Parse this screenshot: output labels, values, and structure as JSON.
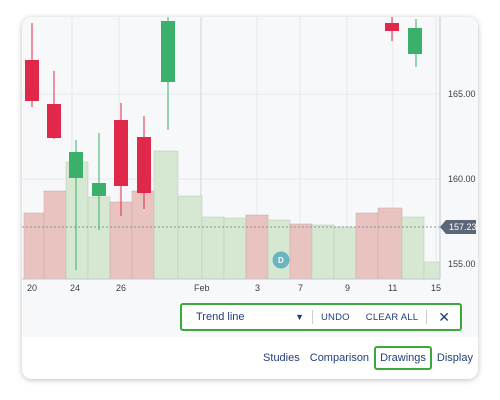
{
  "chart": {
    "y_ticks": [
      "165.00",
      "160.00",
      "155.00"
    ],
    "x_ticks": [
      "20",
      "24",
      "26",
      "Feb",
      "3",
      "7",
      "9",
      "11",
      "15"
    ],
    "current_price": "157.23",
    "event_badge": "D",
    "colors": {
      "up": "#3ab06a",
      "down": "#e0284a",
      "vol_up": "#d6e8d2",
      "vol_down": "#e9c3bf",
      "grid": "#e6e8ec",
      "price_tag": "#5b6778",
      "badge": "#6cb4c2"
    }
  },
  "drawing_toolbar": {
    "tool_value": "Trend line",
    "undo_label": "UNDO",
    "clear_all_label": "CLEAR ALL",
    "close_icon": "close-icon"
  },
  "bottom_menu": {
    "studies": "Studies",
    "comparison": "Comparison",
    "drawings": "Drawings",
    "display": "Display"
  }
}
